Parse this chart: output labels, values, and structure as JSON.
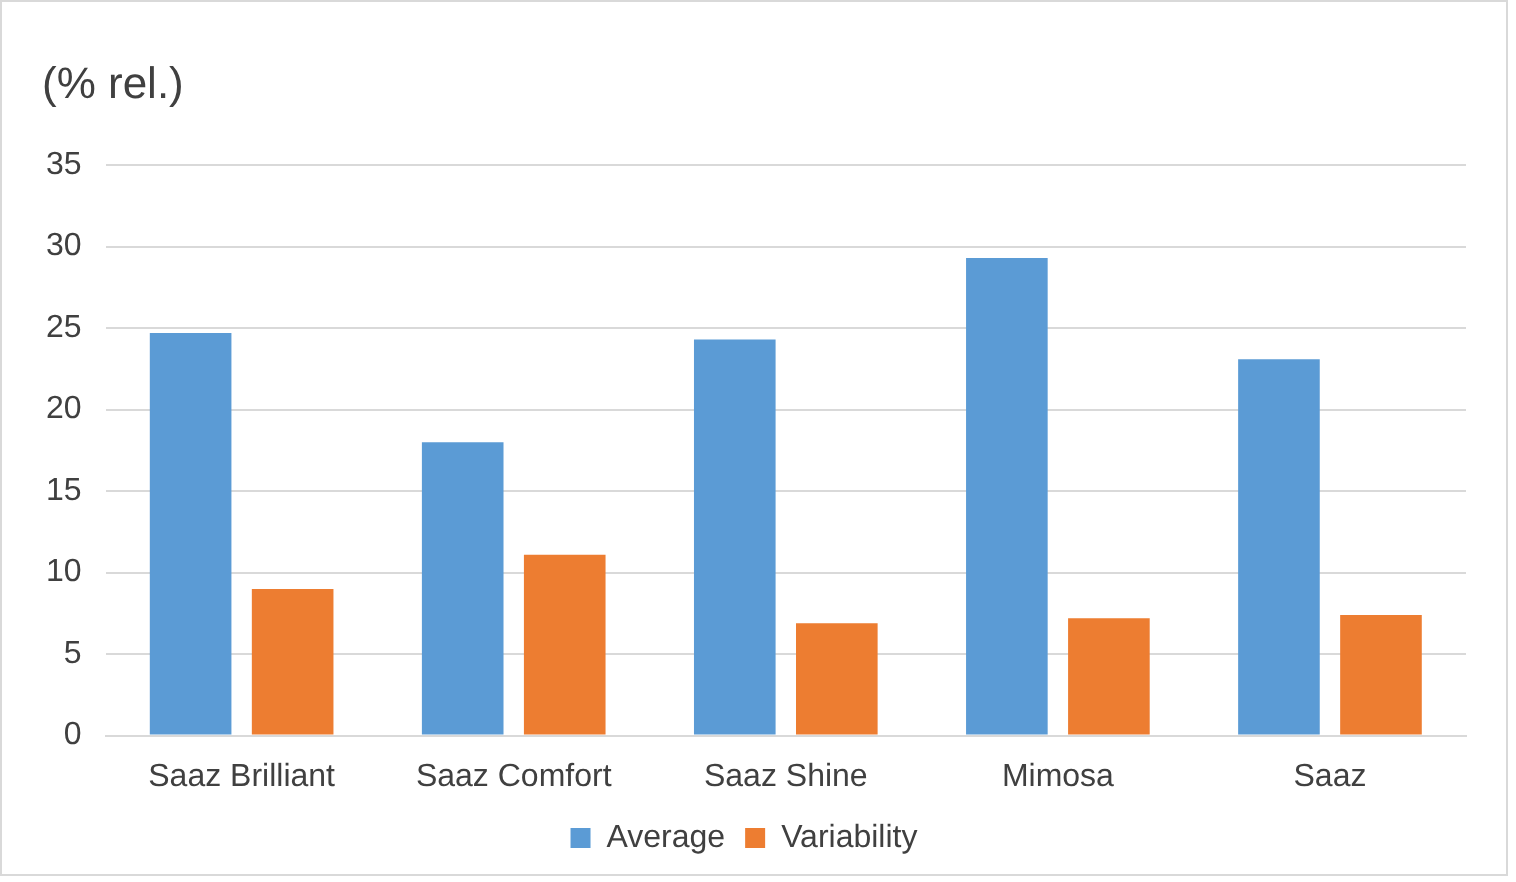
{
  "chart_data": {
    "type": "bar",
    "ylabel": "(% rel.)",
    "categories": [
      "Saaz Brilliant",
      "Saaz Comfort",
      "Saaz Shine",
      "Mimosa",
      "Saaz"
    ],
    "series": [
      {
        "name": "Average",
        "color": "#5b9bd5",
        "values": [
          24.7,
          18.0,
          24.3,
          29.3,
          23.1
        ]
      },
      {
        "name": "Variability",
        "color": "#ed7d31",
        "values": [
          9.0,
          11.1,
          6.9,
          7.2,
          7.4
        ]
      }
    ],
    "ylim": [
      0,
      35
    ],
    "yticks": [
      0,
      5,
      10,
      15,
      20,
      25,
      30,
      35
    ],
    "grid": "y",
    "legend": "bottom"
  }
}
